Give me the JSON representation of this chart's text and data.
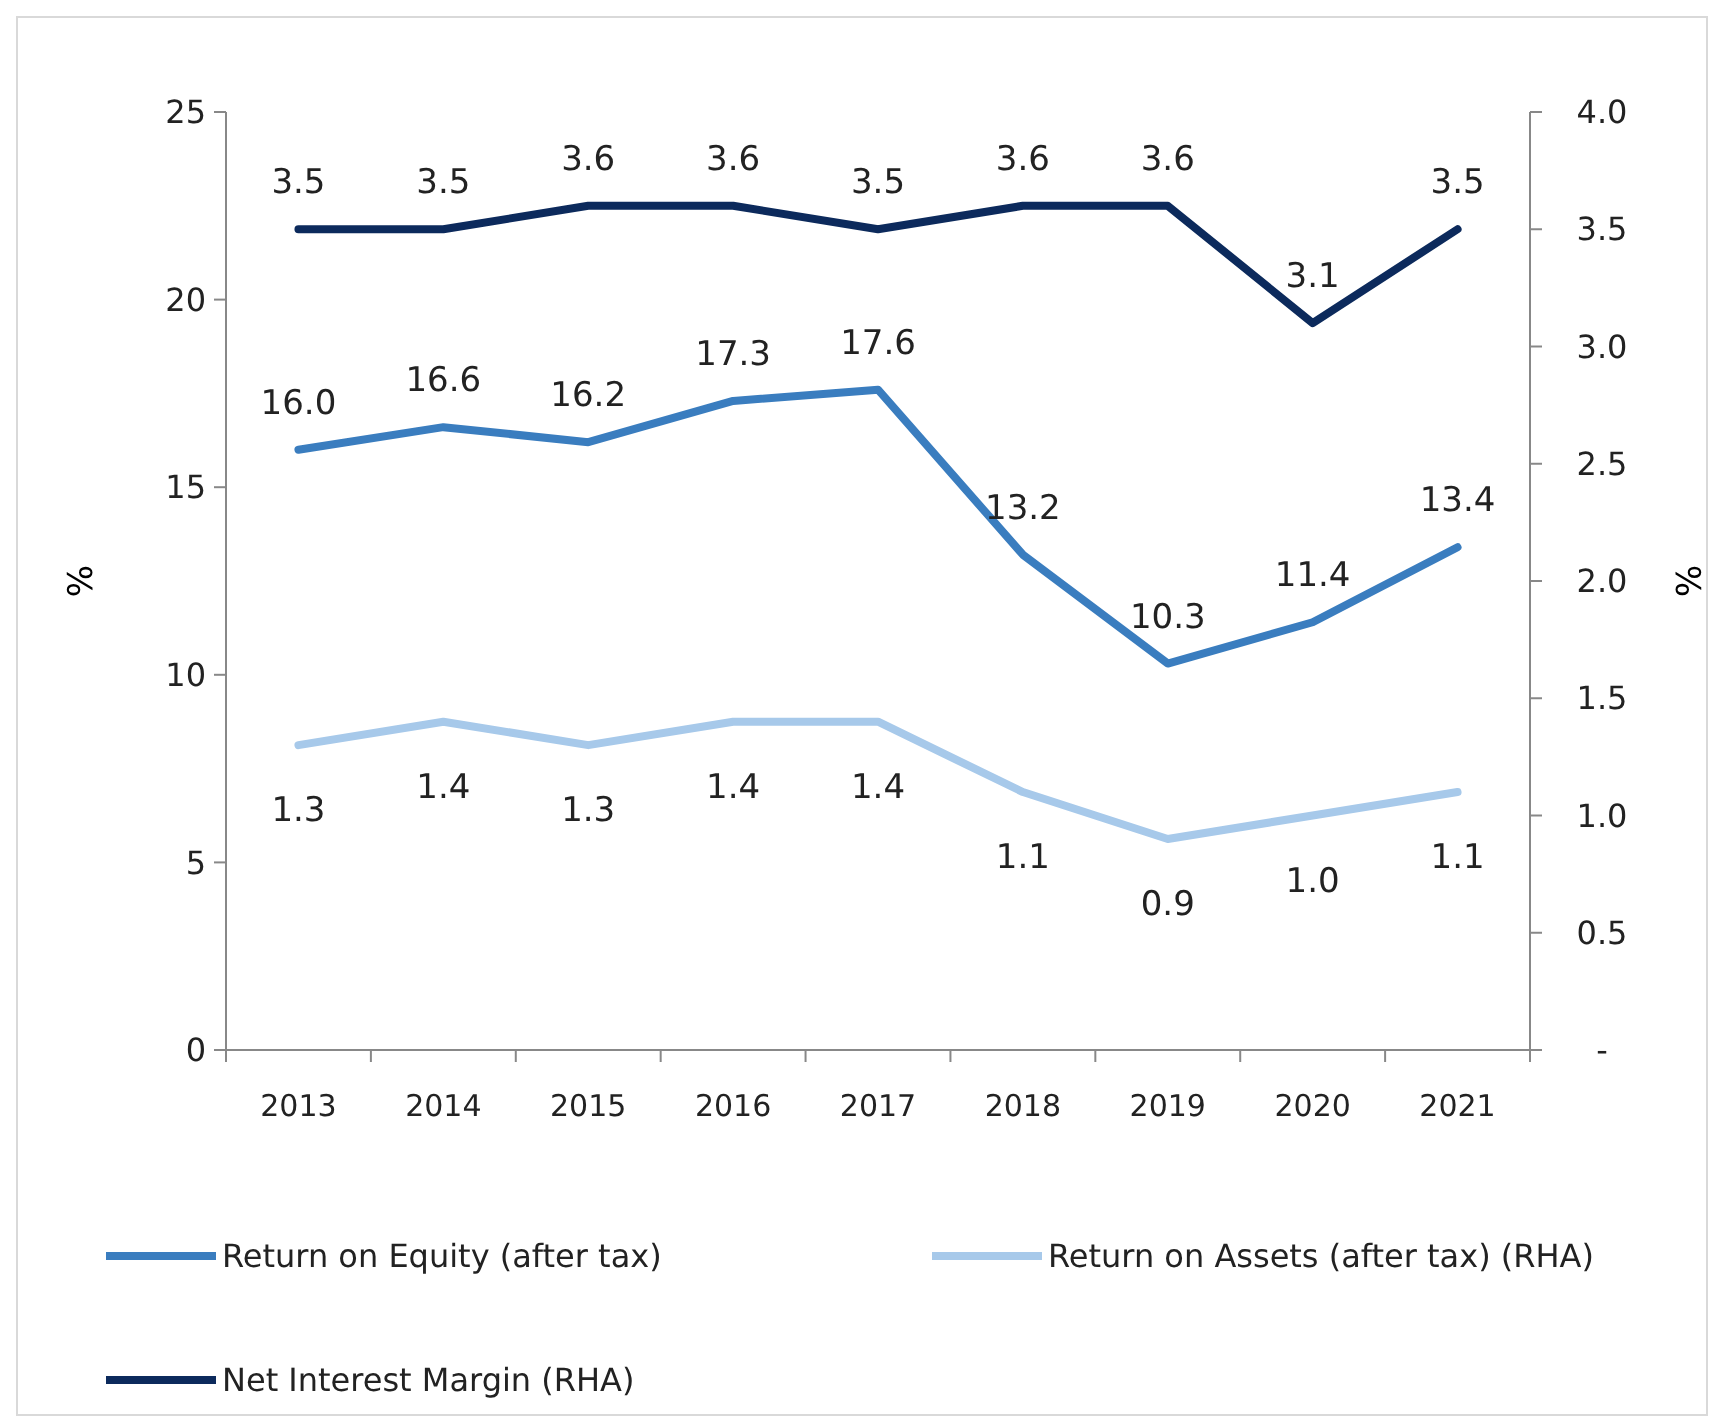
{
  "chart_data": {
    "type": "line",
    "categories": [
      "2013",
      "2014",
      "2015",
      "2016",
      "2017",
      "2018",
      "2019",
      "2020",
      "2021"
    ],
    "ylabel": "%",
    "y2label": "%",
    "ylim": [
      0,
      25
    ],
    "yticks": [
      0,
      5,
      10,
      15,
      20,
      25
    ],
    "y2lim": [
      0,
      4
    ],
    "y2ticks": [
      {
        "value": 0,
        "label": "-"
      },
      {
        "value": 0.5,
        "label": "0.5"
      },
      {
        "value": 1,
        "label": "1.0"
      },
      {
        "value": 1.5,
        "label": "1.5"
      },
      {
        "value": 2,
        "label": "2.0"
      },
      {
        "value": 2.5,
        "label": "2.5"
      },
      {
        "value": 3,
        "label": "3.0"
      },
      {
        "value": 3.5,
        "label": "3.5"
      },
      {
        "value": 4,
        "label": "4.0"
      }
    ],
    "legend": "bottom",
    "grid": false,
    "marker": "none",
    "line_style": "solid",
    "series": [
      {
        "name": "Return on Equity (after tax)",
        "color": "#3a7dbf",
        "values": [
          16.0,
          16.6,
          16.2,
          17.3,
          17.6,
          13.2,
          10.3,
          11.4,
          13.4
        ],
        "value_labels": [
          "16.0",
          "16.6",
          "16.2",
          "17.3",
          "17.6",
          "13.2",
          "10.3",
          "11.4",
          "13.4"
        ]
      },
      {
        "name": "Return on Assets (after tax) (RHA)",
        "color": "#a7c9ea",
        "axis": "y2",
        "values": [
          1.3,
          1.4,
          1.3,
          1.4,
          1.4,
          1.1,
          0.9,
          1.0,
          1.1
        ],
        "value_labels": [
          "1.3",
          "1.4",
          "1.3",
          "1.4",
          "1.4",
          "1.1",
          "0.9",
          "1.0",
          "1.1"
        ]
      },
      {
        "name": "Net Interest Margin (RHA)",
        "color": "#0c2a5c",
        "axis": "y2",
        "values": [
          3.5,
          3.5,
          3.6,
          3.6,
          3.5,
          3.6,
          3.6,
          3.1,
          3.5
        ],
        "value_labels": [
          "3.5",
          "3.5",
          "3.6",
          "3.6",
          "3.5",
          "3.6",
          "3.6",
          "3.1",
          "3.5"
        ]
      }
    ]
  }
}
